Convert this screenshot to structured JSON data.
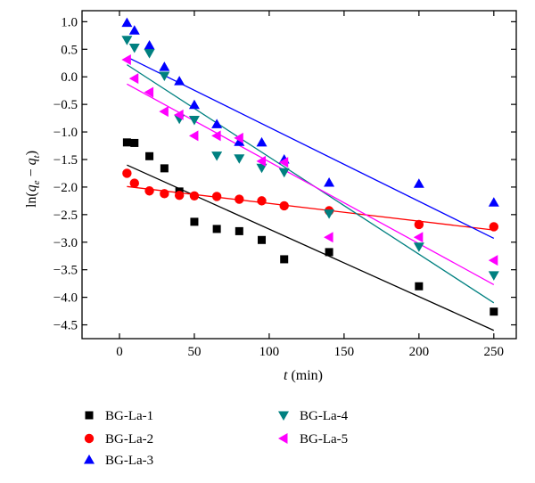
{
  "chart_data": {
    "type": "scatter",
    "xlabel_var": "t",
    "xlabel_unit": " (min)",
    "ylabel_prefix": "ln(",
    "ylabel_q": "q",
    "ylabel_sub_e": "e",
    "ylabel_minus": " − ",
    "ylabel_sub_t": "t",
    "ylabel_suffix": ")",
    "xlim": [
      -25,
      265
    ],
    "ylim": [
      -4.75,
      1.2
    ],
    "xticks": [
      0,
      50,
      100,
      150,
      200,
      250
    ],
    "yticks": [
      1.0,
      0.5,
      0.0,
      -0.5,
      -1.0,
      -1.5,
      -2.0,
      -2.5,
      -3.0,
      -3.5,
      -4.0,
      -4.5
    ],
    "ytick_labels": [
      "1.0",
      "0.5",
      "0.0",
      "−0.5",
      "−1.0",
      "−1.5",
      "−2.0",
      "−2.5",
      "−3.0",
      "−3.5",
      "−4.0",
      "−4.5"
    ],
    "grid": false,
    "legend_position": "bottom",
    "series": [
      {
        "name": "BG-La-1",
        "marker": "square",
        "color": "#000000",
        "x": [
          5,
          10,
          20,
          30,
          40,
          50,
          65,
          80,
          95,
          110,
          140,
          200,
          250
        ],
        "y": [
          -1.19,
          -1.2,
          -1.44,
          -1.66,
          -2.08,
          -2.63,
          -2.76,
          -2.8,
          -2.96,
          -3.31,
          -3.18,
          -3.8,
          -4.26
        ],
        "fit": [
          [
            5,
            -1.6
          ],
          [
            250,
            -4.6
          ]
        ]
      },
      {
        "name": "BG-La-2",
        "marker": "circle",
        "color": "#ff0000",
        "x": [
          5,
          10,
          20,
          30,
          40,
          50,
          65,
          80,
          95,
          110,
          140,
          200,
          250
        ],
        "y": [
          -1.75,
          -1.93,
          -2.07,
          -2.12,
          -2.15,
          -2.16,
          -2.17,
          -2.22,
          -2.25,
          -2.34,
          -2.43,
          -2.68,
          -2.72
        ],
        "fit": [
          [
            5,
            -1.99
          ],
          [
            250,
            -2.78
          ]
        ]
      },
      {
        "name": "BG-La-3",
        "marker": "triangle-up",
        "color": "#0000ff",
        "x": [
          5,
          10,
          20,
          30,
          40,
          50,
          65,
          80,
          95,
          110,
          140,
          200,
          250
        ],
        "y": [
          0.98,
          0.84,
          0.57,
          0.18,
          -0.08,
          -0.51,
          -0.86,
          -1.18,
          -1.19,
          -1.5,
          -1.92,
          -1.94,
          -2.28
        ],
        "fit": [
          [
            5,
            0.36
          ],
          [
            250,
            -2.93
          ]
        ]
      },
      {
        "name": "BG-La-4",
        "marker": "triangle-down",
        "color": "#008080",
        "x": [
          5,
          10,
          20,
          30,
          40,
          50,
          65,
          80,
          95,
          110,
          140,
          200,
          250
        ],
        "y": [
          0.67,
          0.53,
          0.43,
          0.02,
          -0.76,
          -0.78,
          -1.43,
          -1.48,
          -1.65,
          -1.73,
          -2.48,
          -3.08,
          -3.6
        ],
        "fit": [
          [
            5,
            0.22
          ],
          [
            250,
            -4.1
          ]
        ]
      },
      {
        "name": "BG-La-5",
        "marker": "triangle-left",
        "color": "#ff00ff",
        "x": [
          5,
          10,
          20,
          30,
          40,
          50,
          65,
          80,
          95,
          110,
          140,
          200,
          250
        ],
        "y": [
          0.31,
          -0.03,
          -0.28,
          -0.63,
          -0.69,
          -1.07,
          -1.07,
          -1.11,
          -1.53,
          -1.55,
          -2.91,
          -2.91,
          -3.33
        ],
        "fit": [
          [
            5,
            -0.13
          ],
          [
            250,
            -3.77
          ]
        ]
      }
    ]
  }
}
